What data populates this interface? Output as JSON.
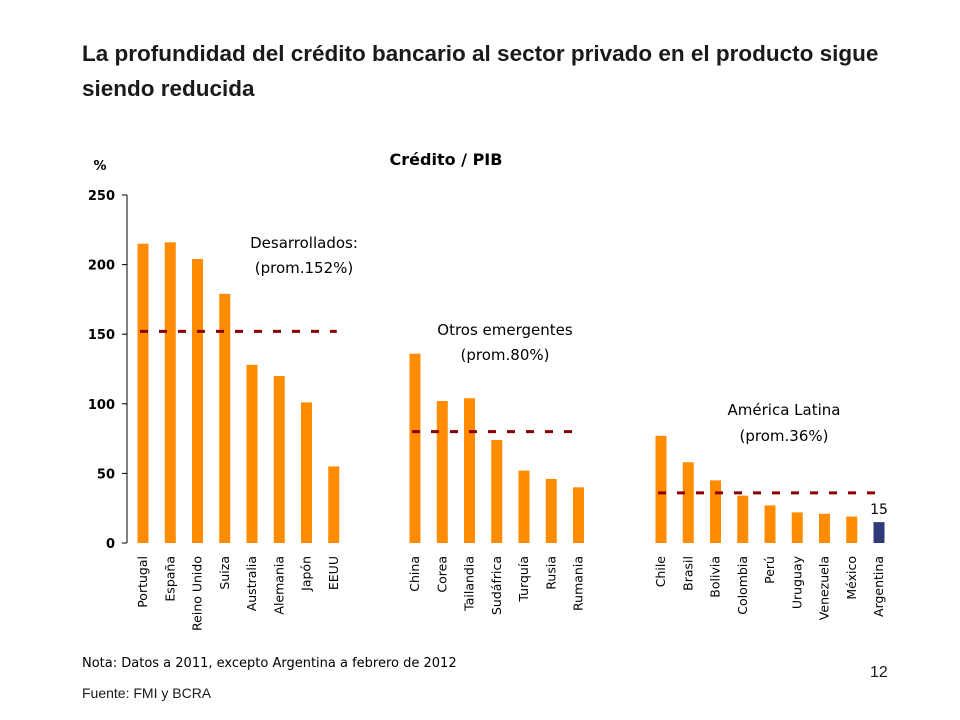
{
  "slide": {
    "title": "La profundidad del crédito bancario al sector privado en el producto sigue siendo reducida",
    "note": "Nota: Datos a 2011, excepto Argentina a febrero de 2012",
    "source": "Fuente: FMI y BCRA",
    "page_number": "12"
  },
  "chart_data": {
    "type": "bar",
    "title": "Crédito / PIB",
    "ylabel": "%",
    "ylim": [
      0,
      250
    ],
    "yticks": [
      0,
      50,
      100,
      150,
      200,
      250
    ],
    "grid": false,
    "colors": {
      "bar": "#FF8C00",
      "highlight": "#2F3A7A",
      "average_line": "#8B0000"
    },
    "groups": [
      {
        "label_line1": "Desarrollados:",
        "label_line2": "(prom.152%)",
        "average": 152,
        "categories": [
          "Portugal",
          "España",
          "Reino Unido",
          "Suiza",
          "Australia",
          "Alemania",
          "Japón",
          "EEUU"
        ],
        "values": [
          215,
          216,
          204,
          179,
          128,
          120,
          101,
          55
        ]
      },
      {
        "label_line1": "Otros emergentes",
        "label_line2": "(prom.80%)",
        "average": 80,
        "categories": [
          "China",
          "Corea",
          "Tailandia",
          "Sudáfrica",
          "Turquía",
          "Rusia",
          "Rumania"
        ],
        "values": [
          136,
          102,
          104,
          74,
          52,
          46,
          40
        ]
      },
      {
        "label_line1": "América Latina",
        "label_line2": "(prom.36%)",
        "average": 36,
        "categories": [
          "Chile",
          "Brasil",
          "Bolivia",
          "Colombia",
          "Perú",
          "Uruguay",
          "Venezuela",
          "México",
          "Argentina"
        ],
        "values": [
          77,
          58,
          45,
          34,
          27,
          22,
          21,
          19,
          15
        ]
      }
    ],
    "highlight_category": "Argentina",
    "data_labels": [
      {
        "category": "Argentina",
        "text": "15"
      }
    ]
  }
}
